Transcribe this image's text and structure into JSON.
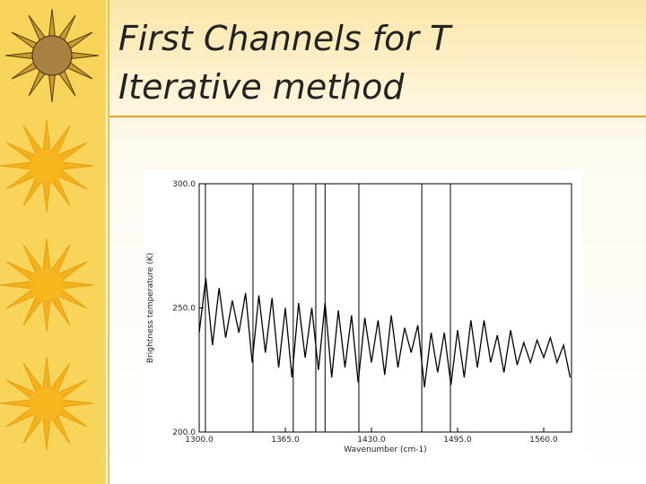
{
  "slide": {
    "title": [
      "First Channels for T",
      "Iterative method"
    ]
  },
  "chart_data": {
    "type": "line",
    "xlabel": "Wavenumber (cm-1)",
    "ylabel": "Brightness temperature (K)",
    "xlim": [
      1300,
      1581
    ],
    "ylim": [
      200,
      300
    ],
    "xticks": [
      {
        "value": 1300,
        "label": "1300.0"
      },
      {
        "value": 1365,
        "label": "1365.0"
      },
      {
        "value": 1430,
        "label": "1430.0"
      },
      {
        "value": 1495,
        "label": "1495.0"
      },
      {
        "value": 1560,
        "label": "1560.0"
      }
    ],
    "yticks": [
      {
        "value": 200,
        "label": "200.0"
      },
      {
        "value": 250,
        "label": "250.0"
      },
      {
        "value": 300,
        "label": "300.0"
      }
    ],
    "vlines": [
      1300,
      1304.7,
      1340.6,
      1371,
      1388,
      1395,
      1420.5,
      1468,
      1489.6
    ],
    "x": [
      1300,
      1305,
      1310,
      1315,
      1320,
      1325,
      1330,
      1335,
      1340,
      1345,
      1350,
      1355,
      1360,
      1365,
      1370,
      1375,
      1380,
      1385,
      1390,
      1395,
      1400,
      1405,
      1410,
      1415,
      1420,
      1425,
      1430,
      1435,
      1440,
      1445,
      1450,
      1455,
      1460,
      1465,
      1470,
      1475,
      1480,
      1485,
      1490,
      1495,
      1500,
      1505,
      1510,
      1515,
      1520,
      1525,
      1530,
      1535,
      1540,
      1545,
      1550,
      1555,
      1560,
      1565,
      1570,
      1575,
      1580
    ],
    "series": [
      {
        "color": "#000000",
        "values": [
          240,
          262,
          235,
          258,
          238,
          253,
          240,
          256,
          228,
          255,
          232,
          254,
          226,
          250,
          222,
          252,
          230,
          250,
          225,
          252,
          222,
          249,
          226,
          247,
          220,
          246,
          228,
          245,
          223,
          247,
          226,
          242,
          232,
          243,
          218,
          240,
          224,
          240,
          219,
          241,
          222,
          245,
          226,
          245,
          228,
          239,
          224,
          241,
          227,
          236,
          228,
          237,
          230,
          238,
          228,
          235,
          222
        ]
      }
    ]
  }
}
